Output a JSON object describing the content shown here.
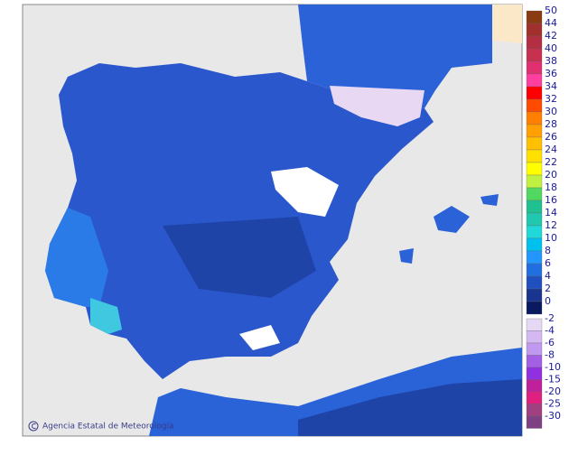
{
  "credit": "Agencia Estatal de Meteorología",
  "legend": {
    "positive": [
      {
        "value": 50,
        "color": "#8a3b12"
      },
      {
        "value": 44,
        "color": "#a1302c"
      },
      {
        "value": 42,
        "color": "#b22e40"
      },
      {
        "value": 40,
        "color": "#c8304f"
      },
      {
        "value": 38,
        "color": "#e03070"
      },
      {
        "value": 36,
        "color": "#ff3fa0"
      },
      {
        "value": 34,
        "color": "#ff0000"
      },
      {
        "value": 32,
        "color": "#ff4a00"
      },
      {
        "value": 30,
        "color": "#ff8000"
      },
      {
        "value": 28,
        "color": "#ffa000"
      },
      {
        "value": 26,
        "color": "#ffc000"
      },
      {
        "value": 24,
        "color": "#ffe000"
      },
      {
        "value": 22,
        "color": "#ffff00"
      },
      {
        "value": 20,
        "color": "#c0f040"
      },
      {
        "value": 18,
        "color": "#50d860"
      },
      {
        "value": 16,
        "color": "#20c090"
      },
      {
        "value": 14,
        "color": "#20c8b0"
      },
      {
        "value": 12,
        "color": "#20d8d8"
      },
      {
        "value": 10,
        "color": "#00c0f0"
      },
      {
        "value": 8,
        "color": "#2496ff"
      },
      {
        "value": 6,
        "color": "#206ee0"
      },
      {
        "value": 4,
        "color": "#2050c0"
      },
      {
        "value": 2,
        "color": "#1a3590"
      },
      {
        "value": 0,
        "color": "#0a1a60"
      }
    ],
    "negative": [
      {
        "value": -2,
        "color": "#e4d8f4"
      },
      {
        "value": -4,
        "color": "#d4b8f2"
      },
      {
        "value": -6,
        "color": "#c098f0"
      },
      {
        "value": -8,
        "color": "#a460e4"
      },
      {
        "value": -10,
        "color": "#9030e0"
      },
      {
        "value": -15,
        "color": "#c0209c"
      },
      {
        "value": -20,
        "color": "#e02080"
      },
      {
        "value": -25,
        "color": "#a04080"
      },
      {
        "value": -30,
        "color": "#7e4082"
      }
    ]
  }
}
